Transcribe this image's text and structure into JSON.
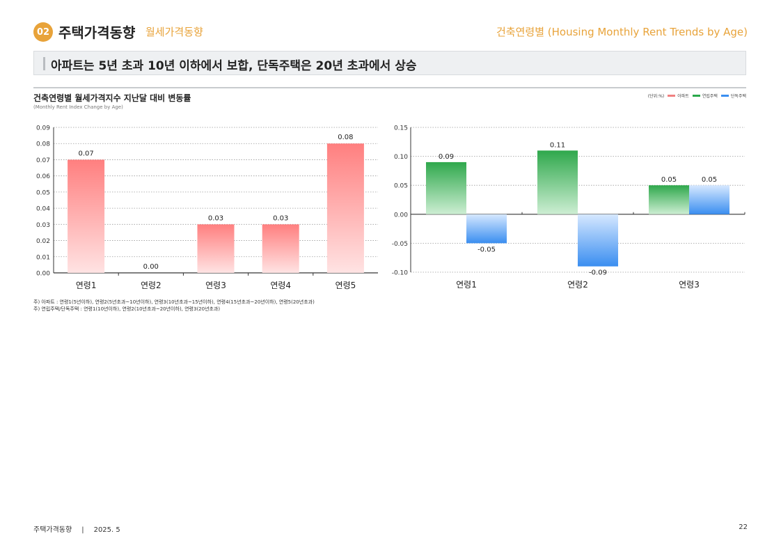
{
  "header": {
    "badge": "02",
    "section_title": "주택가격동향",
    "section_subtitle": "월세가격동향",
    "right_title": "건축연령별 (Housing Monthly Rent Trends by Age)"
  },
  "banner": {
    "text": "아파트는 5년 초과 10년 이하에서 보합, 단독주택은 20년 초과에서 상승"
  },
  "chart_header": {
    "title": "건축연령별 월세가격지수 지난달 대비 변동률",
    "subtitle": "(Monthly Rent Index Change by Age)"
  },
  "legend": {
    "unit": "(단위:%)",
    "items": [
      {
        "label": "아파트",
        "color": "#f08080"
      },
      {
        "label": "연립주택",
        "color": "#2aa84a"
      },
      {
        "label": "단독주택",
        "color": "#3a8ef0"
      }
    ]
  },
  "chart_data": [
    {
      "type": "bar",
      "categories": [
        "연령1",
        "연령2",
        "연령3",
        "연령4",
        "연령5"
      ],
      "series": [
        {
          "name": "아파트",
          "values": [
            0.07,
            0.0,
            0.03,
            0.03,
            0.08
          ],
          "color": "#ff8080"
        }
      ],
      "value_labels": [
        "0.07",
        "0.00",
        "0.03",
        "0.03",
        "0.08"
      ],
      "ylim": [
        0,
        0.09
      ],
      "yticks": [
        0.0,
        0.01,
        0.02,
        0.03,
        0.04,
        0.05,
        0.06,
        0.07,
        0.08,
        0.09
      ],
      "ytick_labels": [
        "0.00",
        "0.01",
        "0.02",
        "0.03",
        "0.04",
        "0.05",
        "0.06",
        "0.07",
        "0.08",
        "0.09"
      ],
      "grid": true
    },
    {
      "type": "bar",
      "categories": [
        "연령1",
        "연령2",
        "연령3"
      ],
      "series": [
        {
          "name": "연립주택",
          "values": [
            0.09,
            0.11,
            0.05
          ],
          "color": "#2aa84a",
          "value_labels": [
            "0.09",
            "0.11",
            "0.05"
          ]
        },
        {
          "name": "단독주택",
          "values": [
            -0.05,
            -0.09,
            0.05
          ],
          "color": "#3a8ef0",
          "value_labels": [
            "-0.05",
            "-0.09",
            "0.05"
          ]
        }
      ],
      "ylim": [
        -0.1,
        0.15
      ],
      "yticks": [
        -0.1,
        -0.05,
        0.0,
        0.05,
        0.1,
        0.15
      ],
      "ytick_labels": [
        "-0.10",
        "-0.05",
        "0.00",
        "0.05",
        "0.10",
        "0.15"
      ],
      "grid": true
    }
  ],
  "footnotes": [
    "주) 아파트 : 연령1(5년이하), 연령2(5년초과~10년이하), 연령3(10년초과~15년이하), 연령4(15년초과~20년이하), 연령5(20년초과)",
    "주) 연립주택/단독주택 : 연령1(10년이하), 연령2(10년초과~20년이하), 연령3(20년초과)"
  ],
  "footer": {
    "publication": "주택가격동향",
    "separator": "|",
    "date": "2025. 5",
    "page": "22"
  }
}
